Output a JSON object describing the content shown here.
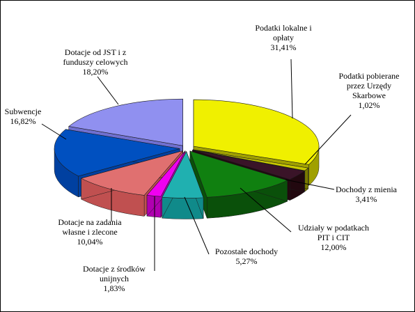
{
  "chart_data": {
    "type": "pie",
    "style": "3d-exploded",
    "legend": "none",
    "slices": [
      {
        "label_lines": [
          "Podatki lokalne i",
          "opłaty"
        ],
        "pct_label": "31,41%",
        "value": 31.41,
        "color": "#F0F000",
        "side_color": "#A0A000"
      },
      {
        "label_lines": [
          "Podatki  pobierane",
          "przez Urzędy",
          "Skarbowe"
        ],
        "pct_label": "1,02%",
        "value": 1.02,
        "color": "#C8C800",
        "side_color": "#7A7A00"
      },
      {
        "label_lines": [
          "Dochody z mienia"
        ],
        "pct_label": "3,41%",
        "value": 3.41,
        "color": "#3A1428",
        "side_color": "#22080F"
      },
      {
        "label_lines": [
          "Udziały w podatkach",
          "PIT i CIT"
        ],
        "pct_label": "12,00%",
        "value": 12.0,
        "color": "#108010",
        "side_color": "#0A500A"
      },
      {
        "label_lines": [
          "Pozostałe dochody"
        ],
        "pct_label": "5,27%",
        "value": 5.27,
        "color": "#20B0B0",
        "side_color": "#108A8A"
      },
      {
        "label_lines": [
          "Dotacje z  środków",
          "unijnych"
        ],
        "pct_label": "1,83%",
        "value": 1.83,
        "color": "#F000F0",
        "side_color": "#B000B0"
      },
      {
        "label_lines": [
          "Dotacje na zadania",
          "własne i zlecone"
        ],
        "pct_label": "10,04%",
        "value": 10.04,
        "color": "#E07070",
        "side_color": "#C05050"
      },
      {
        "label_lines": [
          "Subwencje"
        ],
        "pct_label": "16,82%",
        "value": 16.82,
        "color": "#0050C0",
        "side_color": "#0040A0"
      },
      {
        "label_lines": [
          "Dotacje od JST i z",
          "funduszy celowych"
        ],
        "pct_label": "18,20%",
        "value": 18.2,
        "color": "#9090F0",
        "side_color": "#7070D0"
      }
    ]
  }
}
